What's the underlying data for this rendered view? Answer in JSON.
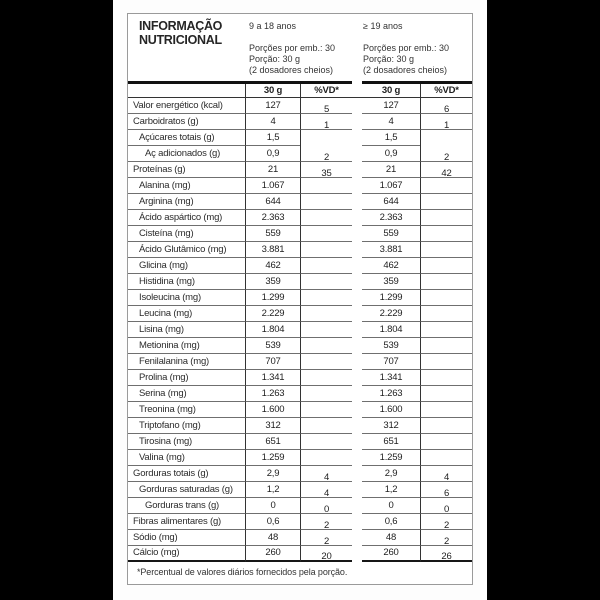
{
  "title_line1": "INFORMAÇÃO",
  "title_line2": "NUTRICIONAL",
  "groups": [
    {
      "age": "9 a 18 anos",
      "servings_per_pack": "Porções por emb.: 30",
      "portion": "Porção: 30 g",
      "scoops": "(2 dosadores cheios)",
      "col_amount": "30 g",
      "col_vd": "%VD*"
    },
    {
      "age": "≥ 19 anos",
      "servings_per_pack": "Porções por emb.: 30",
      "portion": "Porção: 30 g",
      "scoops": "(2 dosadores cheios)",
      "col_amount": "30 g",
      "col_vd": "%VD*"
    }
  ],
  "rows": [
    {
      "label": "Valor energético (kcal)",
      "indent": 0,
      "amount_9_18": "127",
      "vd_9_18": "5",
      "amount_19": "127",
      "vd_19": "6",
      "open_bottom_vd": false
    },
    {
      "label": "Carboidratos (g)",
      "indent": 0,
      "amount_9_18": "4",
      "vd_9_18": "1",
      "amount_19": "4",
      "vd_19": "1",
      "open_bottom_vd": false
    },
    {
      "label": "Açúcares totais (g)",
      "indent": 1,
      "amount_9_18": "1,5",
      "vd_9_18": "",
      "amount_19": "1,5",
      "vd_19": "",
      "open_bottom_vd": true
    },
    {
      "label": "Aç adicionados (g)",
      "indent": 2,
      "amount_9_18": "0,9",
      "vd_9_18": "2",
      "amount_19": "0,9",
      "vd_19": "2",
      "open_bottom_vd": false
    },
    {
      "label": "Proteínas (g)",
      "indent": 0,
      "amount_9_18": "21",
      "vd_9_18": "35",
      "amount_19": "21",
      "vd_19": "42",
      "open_bottom_vd": false
    },
    {
      "label": "Alanina (mg)",
      "indent": 1,
      "amount_9_18": "1.067",
      "vd_9_18": "",
      "amount_19": "1.067",
      "vd_19": "",
      "open_bottom_vd": false
    },
    {
      "label": "Arginina (mg)",
      "indent": 1,
      "amount_9_18": "644",
      "vd_9_18": "",
      "amount_19": "644",
      "vd_19": "",
      "open_bottom_vd": false
    },
    {
      "label": "Ácido aspártico (mg)",
      "indent": 1,
      "amount_9_18": "2.363",
      "vd_9_18": "",
      "amount_19": "2.363",
      "vd_19": "",
      "open_bottom_vd": false
    },
    {
      "label": "Cisteína (mg)",
      "indent": 1,
      "amount_9_18": "559",
      "vd_9_18": "",
      "amount_19": "559",
      "vd_19": "",
      "open_bottom_vd": false
    },
    {
      "label": "Ácido Glutâmico (mg)",
      "indent": 1,
      "amount_9_18": "3.881",
      "vd_9_18": "",
      "amount_19": "3.881",
      "vd_19": "",
      "open_bottom_vd": false
    },
    {
      "label": "Glicina (mg)",
      "indent": 1,
      "amount_9_18": "462",
      "vd_9_18": "",
      "amount_19": "462",
      "vd_19": "",
      "open_bottom_vd": false
    },
    {
      "label": "Histidina (mg)",
      "indent": 1,
      "amount_9_18": "359",
      "vd_9_18": "",
      "amount_19": "359",
      "vd_19": "",
      "open_bottom_vd": false
    },
    {
      "label": "Isoleucina (mg)",
      "indent": 1,
      "amount_9_18": "1.299",
      "vd_9_18": "",
      "amount_19": "1.299",
      "vd_19": "",
      "open_bottom_vd": false
    },
    {
      "label": "Leucina (mg)",
      "indent": 1,
      "amount_9_18": "2.229",
      "vd_9_18": "",
      "amount_19": "2.229",
      "vd_19": "",
      "open_bottom_vd": false
    },
    {
      "label": "Lisina (mg)",
      "indent": 1,
      "amount_9_18": "1.804",
      "vd_9_18": "",
      "amount_19": "1.804",
      "vd_19": "",
      "open_bottom_vd": false
    },
    {
      "label": "Metionina (mg)",
      "indent": 1,
      "amount_9_18": "539",
      "vd_9_18": "",
      "amount_19": "539",
      "vd_19": "",
      "open_bottom_vd": false
    },
    {
      "label": "Fenilalanina (mg)",
      "indent": 1,
      "amount_9_18": "707",
      "vd_9_18": "",
      "amount_19": "707",
      "vd_19": "",
      "open_bottom_vd": false
    },
    {
      "label": "Prolina (mg)",
      "indent": 1,
      "amount_9_18": "1.341",
      "vd_9_18": "",
      "amount_19": "1.341",
      "vd_19": "",
      "open_bottom_vd": false
    },
    {
      "label": "Serina (mg)",
      "indent": 1,
      "amount_9_18": "1.263",
      "vd_9_18": "",
      "amount_19": "1.263",
      "vd_19": "",
      "open_bottom_vd": false
    },
    {
      "label": "Treonina (mg)",
      "indent": 1,
      "amount_9_18": "1.600",
      "vd_9_18": "",
      "amount_19": "1.600",
      "vd_19": "",
      "open_bottom_vd": false
    },
    {
      "label": "Triptofano (mg)",
      "indent": 1,
      "amount_9_18": "312",
      "vd_9_18": "",
      "amount_19": "312",
      "vd_19": "",
      "open_bottom_vd": false
    },
    {
      "label": "Tirosina (mg)",
      "indent": 1,
      "amount_9_18": "651",
      "vd_9_18": "",
      "amount_19": "651",
      "vd_19": "",
      "open_bottom_vd": false
    },
    {
      "label": "Valina (mg)",
      "indent": 1,
      "amount_9_18": "1.259",
      "vd_9_18": "",
      "amount_19": "1.259",
      "vd_19": "",
      "open_bottom_vd": false
    },
    {
      "label": "Gorduras totais (g)",
      "indent": 0,
      "amount_9_18": "2,9",
      "vd_9_18": "4",
      "amount_19": "2,9",
      "vd_19": "4",
      "open_bottom_vd": false
    },
    {
      "label": "Gorduras saturadas (g)",
      "indent": 1,
      "amount_9_18": "1,2",
      "vd_9_18": "4",
      "amount_19": "1,2",
      "vd_19": "6",
      "open_bottom_vd": false
    },
    {
      "label": "Gorduras trans (g)",
      "indent": 2,
      "amount_9_18": "0",
      "vd_9_18": "0",
      "amount_19": "0",
      "vd_19": "0",
      "open_bottom_vd": false
    },
    {
      "label": "Fibras alimentares (g)",
      "indent": 0,
      "amount_9_18": "0,6",
      "vd_9_18": "2",
      "amount_19": "0,6",
      "vd_19": "2",
      "open_bottom_vd": false
    },
    {
      "label": "Sódio (mg)",
      "indent": 0,
      "amount_9_18": "48",
      "vd_9_18": "2",
      "amount_19": "48",
      "vd_19": "2",
      "open_bottom_vd": false
    },
    {
      "label": "Cálcio (mg)",
      "indent": 0,
      "amount_9_18": "260",
      "vd_9_18": "20",
      "amount_19": "260",
      "vd_19": "26",
      "open_bottom_vd": false
    }
  ],
  "footnote": "*Percentual de valores diários fornecidos pela porção."
}
